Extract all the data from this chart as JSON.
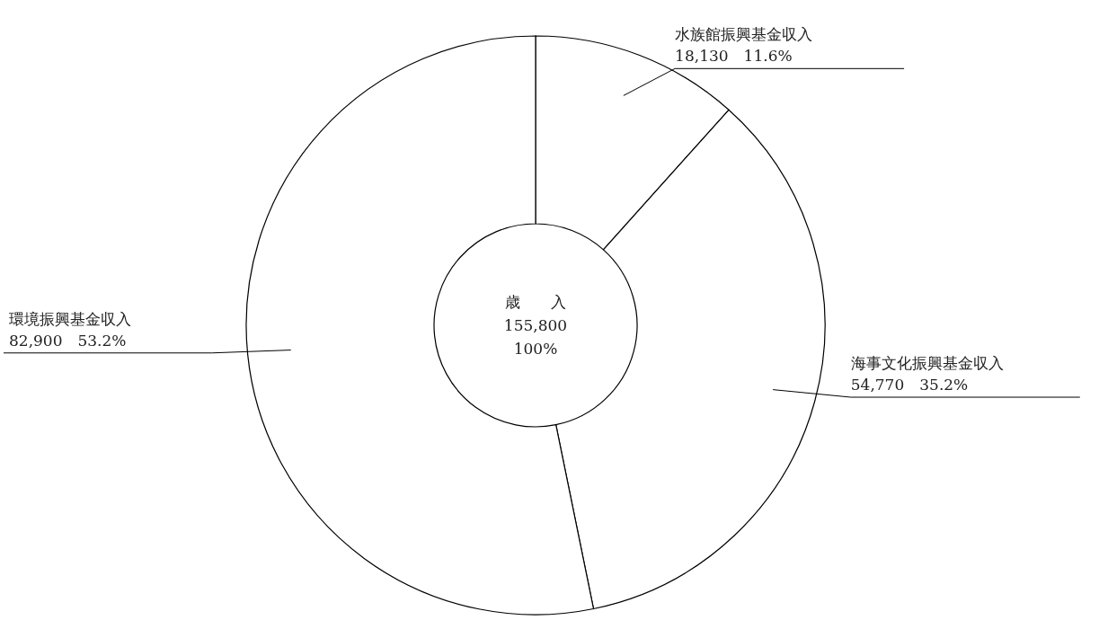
{
  "chart_data": {
    "type": "donut",
    "categories": [
      "水族館振興基金収入",
      "海事文化振興基金収入",
      "環境振興基金収入"
    ],
    "values": [
      18130,
      54770,
      82900
    ],
    "colors": [
      "#ffffff",
      "#ffffff",
      "#ffffff"
    ],
    "value_labels": [
      "18,130　11.6%",
      "54,770　35.2%",
      "82,900　53.2%"
    ],
    "annotations": [
      "歳　　入",
      "155,800",
      "100%"
    ]
  }
}
